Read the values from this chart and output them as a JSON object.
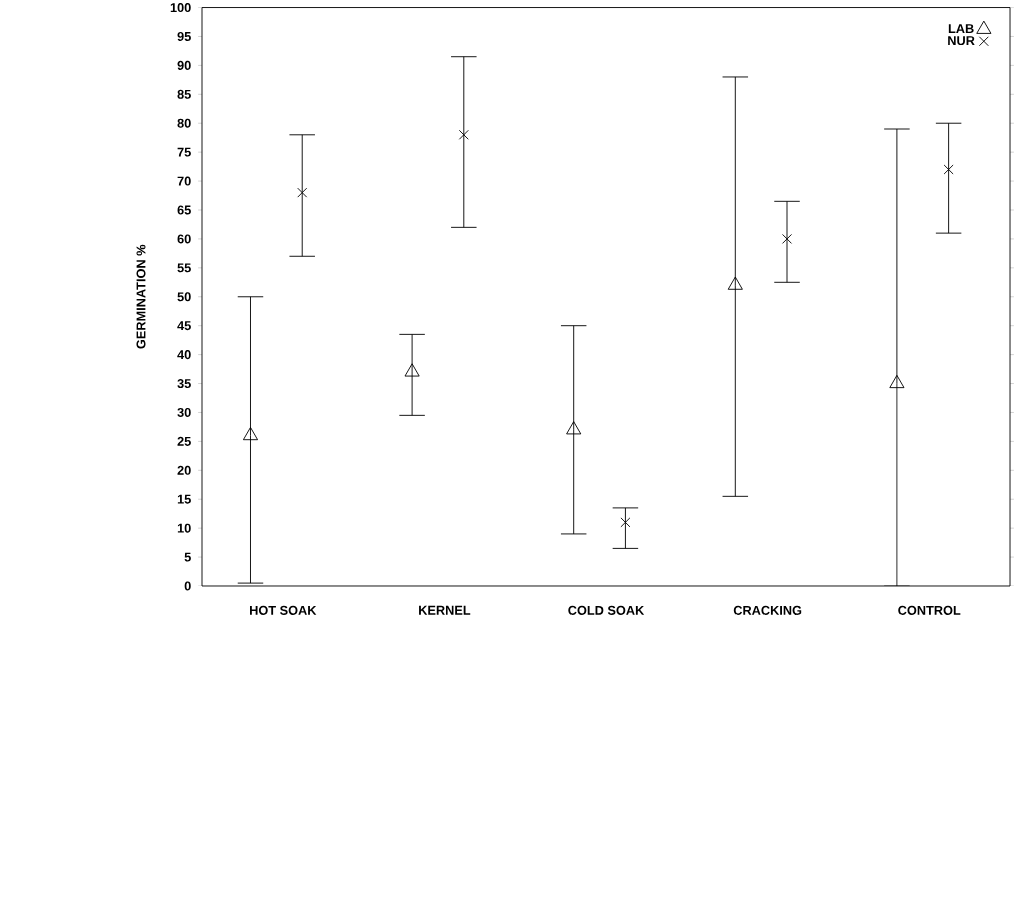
{
  "chart_data": {
    "type": "scatter",
    "ylabel": "GERMINATION %",
    "categories": [
      "HOT SOAK",
      "KERNEL",
      "COLD SOAK",
      "CRACKING",
      "CONTROL"
    ],
    "series": [
      {
        "name": "LAB",
        "color": "#000000",
        "marker": "triangle",
        "values": [
          26,
          37,
          27,
          52,
          35
        ],
        "errors": [
          [
            0.5,
            50
          ],
          [
            29.5,
            43.5
          ],
          [
            9,
            45
          ],
          [
            15.5,
            88
          ],
          [
            0,
            79
          ]
        ]
      },
      {
        "name": "NUR",
        "color": "#000000",
        "marker": "cross",
        "values": [
          68,
          78,
          11,
          60,
          72
        ],
        "errors": [
          [
            57,
            78
          ],
          [
            62,
            91.5
          ],
          [
            6.5,
            13.5
          ],
          [
            52.5,
            66.5
          ],
          [
            61,
            80
          ]
        ]
      }
    ],
    "ylim": [
      0,
      100
    ],
    "yticks": [
      0,
      5,
      10,
      15,
      20,
      25,
      30,
      35,
      40,
      45,
      50,
      55,
      60,
      65,
      70,
      75,
      80,
      85,
      90,
      95,
      100
    ],
    "legend": "top right"
  }
}
